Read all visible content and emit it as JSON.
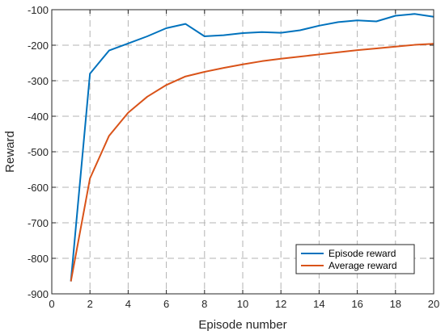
{
  "chart_data": {
    "type": "line",
    "xlabel": "Episode number",
    "ylabel": "Reward",
    "xlim": [
      0,
      20
    ],
    "ylim": [
      -900,
      -100
    ],
    "xticks": [
      0,
      2,
      4,
      6,
      8,
      10,
      12,
      14,
      16,
      18,
      20
    ],
    "yticks": [
      -900,
      -800,
      -700,
      -600,
      -500,
      -400,
      -300,
      -200,
      -100
    ],
    "grid": "dashed",
    "legend_position": "bottom-right",
    "x": [
      1,
      2,
      3,
      4,
      5,
      6,
      7,
      8,
      9,
      10,
      11,
      12,
      13,
      14,
      15,
      16,
      17,
      18,
      19,
      20
    ],
    "series": [
      {
        "name": "Episode reward",
        "color": "#0072BD",
        "values": [
          -865,
          -280,
          -215,
          -195,
          -175,
          -152,
          -140,
          -175,
          -172,
          -166,
          -163,
          -165,
          -158,
          -145,
          -135,
          -130,
          -133,
          -117,
          -112,
          -120
        ]
      },
      {
        "name": "Average reward",
        "color": "#D95319",
        "values": [
          -865,
          -575,
          -455,
          -390,
          -345,
          -312,
          -288,
          -275,
          -264,
          -254,
          -245,
          -238,
          -232,
          -226,
          -220,
          -214,
          -209,
          -204,
          -199,
          -196
        ]
      }
    ]
  }
}
